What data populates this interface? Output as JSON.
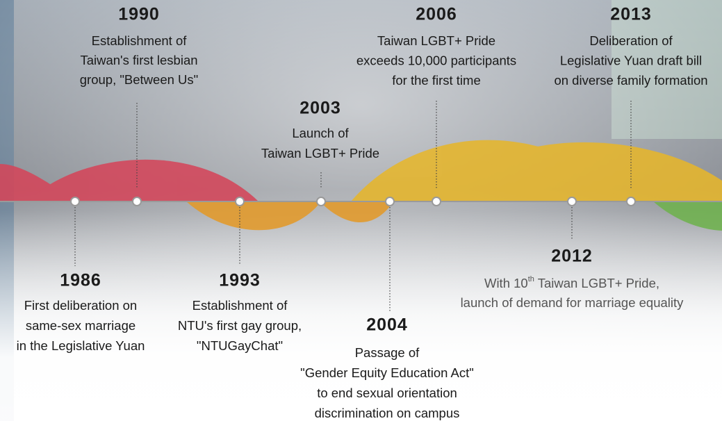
{
  "events": [
    {
      "year": "1986",
      "description": [
        "First deliberation on",
        "same-sex marriage",
        "in the Legislative Yuan"
      ]
    },
    {
      "year": "1990",
      "description": [
        "Establishment of",
        "Taiwan's first lesbian",
        "group, \"Between Us\""
      ]
    },
    {
      "year": "1993",
      "description": [
        "Establishment of",
        "NTU's first gay group,",
        "\"NTUGayChat\""
      ]
    },
    {
      "year": "2003",
      "description": [
        "Launch of",
        "Taiwan LGBT+ Pride"
      ]
    },
    {
      "year": "2004",
      "description": [
        "Passage of",
        "\"Gender Equity Education Act\"",
        "to end sexual orientation",
        "discrimination on campus"
      ]
    },
    {
      "year": "2006",
      "description": [
        "Taiwan LGBT+ Pride",
        "exceeds 10,000 participants",
        "for the first time"
      ]
    },
    {
      "year": "2012",
      "description": [
        {
          "text": "With 10",
          "sup": "th",
          "rest": " Taiwan LGBT+ Pride,"
        },
        "launch of demand for marriage equality"
      ]
    },
    {
      "year": "2013",
      "description": [
        "Deliberation of",
        "Legislative Yuan draft bill",
        "on diverse family formation"
      ]
    }
  ]
}
